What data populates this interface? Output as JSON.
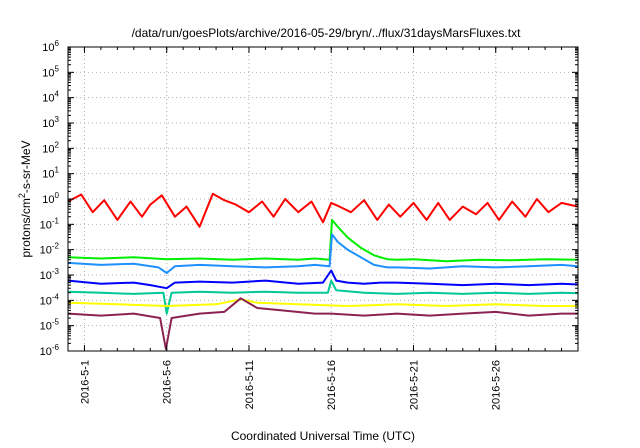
{
  "chart_data": {
    "type": "line",
    "title": "/data/run/goesPlots/archive/2016-05-29/bryn/../flux/31daysMarsFluxes.txt",
    "xlabel": "Coordinated Universal Time (UTC)",
    "ylabel": "protons/cm²-s-sr-MeV",
    "ylabel_parts": {
      "pre": "protons/cm",
      "sup": "2",
      "post": "-s-sr-MeV"
    },
    "x_range_days": [
      0,
      31
    ],
    "x_ticks": [
      {
        "day": 1,
        "label": "2016-5-1"
      },
      {
        "day": 6,
        "label": "2016-5-6"
      },
      {
        "day": 11,
        "label": "2016-5-11"
      },
      {
        "day": 16,
        "label": "2016-5-16"
      },
      {
        "day": 21,
        "label": "2016-5-21"
      },
      {
        "day": 26,
        "label": "2016-5-26"
      }
    ],
    "y_scale": "log",
    "y_range_exp": [
      -6,
      6
    ],
    "y_ticks": [
      {
        "base": "10",
        "exp": "-6"
      },
      {
        "base": "10",
        "exp": "-5"
      },
      {
        "base": "10",
        "exp": "-4"
      },
      {
        "base": "10",
        "exp": "-3"
      },
      {
        "base": "10",
        "exp": "-2"
      },
      {
        "base": "10",
        "exp": "-1"
      },
      {
        "base": "10",
        "exp": "0"
      },
      {
        "base": "10",
        "exp": "1"
      },
      {
        "base": "10",
        "exp": "2"
      },
      {
        "base": "10",
        "exp": "3"
      },
      {
        "base": "10",
        "exp": "4"
      },
      {
        "base": "10",
        "exp": "5"
      },
      {
        "base": "10",
        "exp": "6"
      }
    ],
    "grid": true,
    "legend": "none",
    "series": [
      {
        "name": "red",
        "color": "#ff0000",
        "day": [
          0,
          0.8,
          1.5,
          2.2,
          3,
          3.8,
          4.5,
          5,
          5.7,
          6.5,
          7.2,
          8,
          8.8,
          9.5,
          10.2,
          11,
          11.8,
          12.5,
          13.2,
          14,
          14.8,
          15.5,
          16,
          16.5,
          17.2,
          18,
          18.8,
          19.5,
          20.2,
          21,
          21.8,
          22.5,
          23.2,
          24,
          24.8,
          25.5,
          26.2,
          27,
          27.8,
          28.5,
          29.2,
          30,
          31
        ],
        "value": [
          0.8,
          1.5,
          0.3,
          0.9,
          0.15,
          0.8,
          0.2,
          0.6,
          1.4,
          0.2,
          0.5,
          0.08,
          1.6,
          0.9,
          0.6,
          0.3,
          0.8,
          0.2,
          1.0,
          0.3,
          0.8,
          0.12,
          0.7,
          0.5,
          0.3,
          0.9,
          0.15,
          0.6,
          0.2,
          0.7,
          0.15,
          0.7,
          0.15,
          0.5,
          0.25,
          0.7,
          0.15,
          0.8,
          0.2,
          1.0,
          0.3,
          0.7,
          0.5
        ]
      },
      {
        "name": "green",
        "color": "#00ee00",
        "day": [
          0,
          2,
          4,
          6,
          8,
          10,
          12,
          14,
          15,
          15.9,
          16.05,
          16.4,
          17,
          17.8,
          18.6,
          19.4,
          20,
          21,
          23,
          25,
          27,
          29,
          31
        ],
        "value": [
          0.005,
          0.0045,
          0.005,
          0.0042,
          0.0045,
          0.004,
          0.0045,
          0.004,
          0.0045,
          0.004,
          0.15,
          0.08,
          0.03,
          0.012,
          0.006,
          0.0042,
          0.004,
          0.0042,
          0.0035,
          0.004,
          0.0038,
          0.0042,
          0.004
        ]
      },
      {
        "name": "light-blue",
        "color": "#1e90ff",
        "day": [
          0,
          2,
          4,
          5.5,
          6,
          6.5,
          8,
          10,
          12,
          14,
          15,
          15.9,
          16.05,
          16.4,
          17,
          17.8,
          18.6,
          19.4,
          20,
          22,
          24,
          26,
          28,
          30,
          31
        ],
        "value": [
          0.003,
          0.0025,
          0.0028,
          0.002,
          0.0012,
          0.0022,
          0.0025,
          0.0022,
          0.002,
          0.0022,
          0.0025,
          0.0022,
          0.04,
          0.02,
          0.01,
          0.005,
          0.0025,
          0.002,
          0.002,
          0.0018,
          0.0022,
          0.002,
          0.0022,
          0.0025,
          0.0022
        ]
      },
      {
        "name": "blue",
        "color": "#0000ff",
        "day": [
          0,
          2,
          4,
          5,
          6,
          6.5,
          8,
          10,
          12,
          14,
          15.5,
          16,
          16.3,
          17,
          18,
          19,
          20,
          22,
          24,
          26,
          28,
          30,
          31
        ],
        "value": [
          0.0006,
          0.00045,
          0.0005,
          0.0004,
          0.0003,
          0.0005,
          0.00055,
          0.0005,
          0.0006,
          0.00045,
          0.0005,
          0.0015,
          0.0006,
          0.0005,
          0.00045,
          0.0005,
          0.0005,
          0.00045,
          0.0004,
          0.00045,
          0.0004,
          0.00045,
          0.00042
        ]
      },
      {
        "name": "cyan-green",
        "color": "#00c896",
        "day": [
          0,
          2,
          4,
          5.8,
          6,
          6.3,
          8,
          10,
          12,
          14,
          15.8,
          16,
          16.3,
          18,
          20,
          22,
          24,
          26,
          28,
          30,
          31
        ],
        "value": [
          0.00022,
          0.0002,
          0.00018,
          0.0002,
          3e-05,
          0.0002,
          0.00022,
          0.0002,
          0.00022,
          0.0002,
          0.0002,
          0.0006,
          0.00025,
          0.0002,
          0.00018,
          0.0002,
          0.00018,
          0.0002,
          0.00018,
          0.0002,
          0.00019
        ]
      },
      {
        "name": "yellow",
        "color": "#ffff00",
        "day": [
          0,
          3,
          6,
          9,
          10.5,
          11.5,
          14,
          17,
          20,
          23,
          26,
          29,
          31
        ],
        "value": [
          8e-05,
          7e-05,
          6e-05,
          7e-05,
          0.00011,
          8e-05,
          7e-05,
          6e-05,
          7e-05,
          6e-05,
          7e-05,
          6e-05,
          6e-05
        ]
      },
      {
        "name": "purple",
        "color": "#8b2252",
        "day": [
          0,
          2,
          4,
          5.6,
          5.95,
          6.3,
          8,
          9.5,
          10.5,
          11.5,
          13,
          15,
          16,
          18,
          20,
          22,
          24,
          26,
          28,
          30,
          31
        ],
        "value": [
          3e-05,
          2.5e-05,
          3e-05,
          2e-05,
          1.2e-06,
          2e-05,
          3e-05,
          3.5e-05,
          0.00012,
          5e-05,
          4e-05,
          3e-05,
          3e-05,
          2.5e-05,
          3e-05,
          2.5e-05,
          3e-05,
          3.5e-05,
          2.5e-05,
          3e-05,
          3e-05
        ]
      }
    ]
  }
}
